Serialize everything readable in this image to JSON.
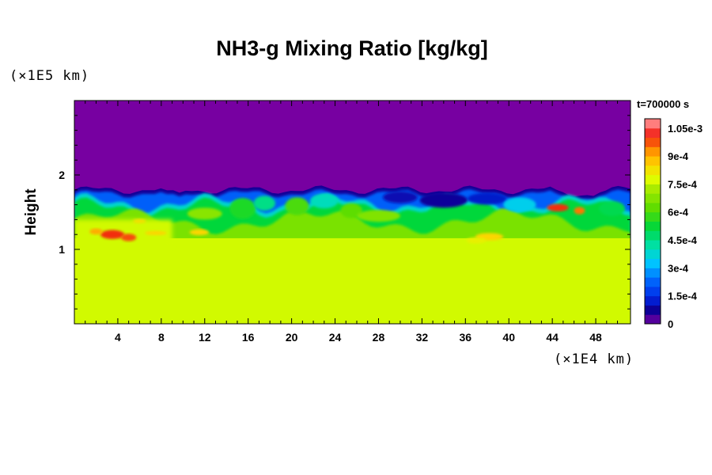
{
  "chart_data": {
    "type": "heatmap",
    "title": "NH3-g Mixing Ratio [kg/kg]",
    "ylabel": "Height",
    "y_unit": "(×1E5 km)",
    "x_unit": "(×1E4 km)",
    "time_label": "t=700000 s",
    "xlim": [
      0,
      51.2
    ],
    "ylim": [
      0,
      3
    ],
    "x_ticks": [
      "4",
      "8",
      "12",
      "16",
      "20",
      "24",
      "28",
      "32",
      "36",
      "40",
      "44",
      "48"
    ],
    "x_tick_values": [
      4,
      8,
      12,
      16,
      20,
      24,
      28,
      32,
      36,
      40,
      44,
      48
    ],
    "y_ticks": [
      "1",
      "2"
    ],
    "y_tick_values": [
      1,
      2
    ],
    "colorbar": {
      "min": 0,
      "max": 0.0011,
      "tick_labels": [
        "0",
        "1.5e-4",
        "3e-4",
        "4.5e-4",
        "6e-4",
        "7.5e-4",
        "9e-4",
        "1.05e-3"
      ],
      "tick_values": [
        0,
        0.00015,
        0.0003,
        0.00045,
        0.0006,
        0.00075,
        0.0009,
        0.00105
      ]
    },
    "regions": {
      "upper_layer_value": 0,
      "lower_layer_value": 0.00076,
      "interface_height_approx": 1.8,
      "well_mixed_top_approx": 1.05
    }
  }
}
